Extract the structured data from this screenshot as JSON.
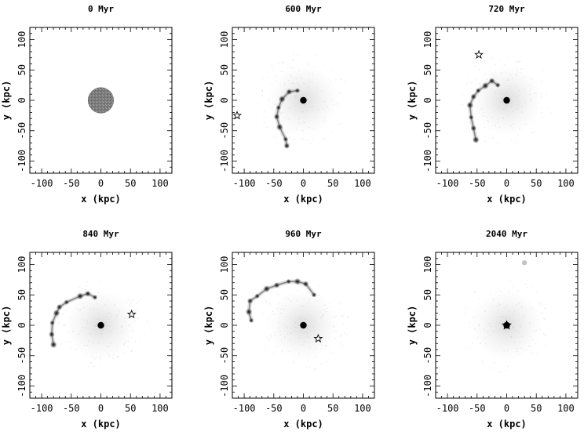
{
  "axis_labels": {
    "x": "x (kpc)",
    "y": "y (kpc)"
  },
  "ticks": {
    "x": [
      -100,
      -50,
      0,
      50,
      100
    ],
    "y": [
      100,
      50,
      0,
      -50,
      -100
    ]
  },
  "axis_range": {
    "x": [
      -120,
      120
    ],
    "y": [
      -120,
      120
    ]
  },
  "colors": {
    "ink": "#000000",
    "background": "#ffffff",
    "particles": "#8a8a8a"
  },
  "panels": [
    {
      "title": "0  Myr",
      "disk": {
        "x": 0,
        "y": 0,
        "r": 22
      },
      "core": null,
      "perturber": null,
      "blobs": []
    },
    {
      "title": "600  Myr",
      "core": {
        "x": 0,
        "y": 0
      },
      "perturber": {
        "x": -112,
        "y": -25,
        "filled": false
      },
      "blobs": [
        {
          "x": -10,
          "y": 16
        },
        {
          "x": -24,
          "y": 14
        },
        {
          "x": -36,
          "y": 2
        },
        {
          "x": -42,
          "y": -12
        },
        {
          "x": -45,
          "y": -27
        },
        {
          "x": -40,
          "y": -44
        },
        {
          "x": -30,
          "y": -64
        },
        {
          "x": -28,
          "y": -75
        }
      ]
    },
    {
      "title": "720  Myr",
      "core": {
        "x": 0,
        "y": 0
      },
      "perturber": {
        "x": -47,
        "y": 75,
        "filled": false
      },
      "blobs": [
        {
          "x": -15,
          "y": 25
        },
        {
          "x": -25,
          "y": 32
        },
        {
          "x": -36,
          "y": 24
        },
        {
          "x": -48,
          "y": 16
        },
        {
          "x": -56,
          "y": 6
        },
        {
          "x": -62,
          "y": -8
        },
        {
          "x": -60,
          "y": -28
        },
        {
          "x": -56,
          "y": -46
        },
        {
          "x": -52,
          "y": -65
        }
      ]
    },
    {
      "title": "840  Myr",
      "core": {
        "x": 0,
        "y": 0
      },
      "perturber": {
        "x": 52,
        "y": 18,
        "filled": false
      },
      "blobs": [
        {
          "x": -10,
          "y": 46
        },
        {
          "x": -22,
          "y": 52
        },
        {
          "x": -35,
          "y": 48
        },
        {
          "x": -58,
          "y": 38
        },
        {
          "x": -70,
          "y": 30
        },
        {
          "x": -75,
          "y": 20
        },
        {
          "x": -82,
          "y": 4
        },
        {
          "x": -83,
          "y": -15
        },
        {
          "x": -80,
          "y": -32
        }
      ]
    },
    {
      "title": "960  Myr",
      "core": {
        "x": 0,
        "y": 0
      },
      "perturber": {
        "x": 25,
        "y": -22,
        "filled": false
      },
      "blobs": [
        {
          "x": 18,
          "y": 50
        },
        {
          "x": 4,
          "y": 68
        },
        {
          "x": -10,
          "y": 72
        },
        {
          "x": -25,
          "y": 72
        },
        {
          "x": -45,
          "y": 66
        },
        {
          "x": -62,
          "y": 60
        },
        {
          "x": -78,
          "y": 48
        },
        {
          "x": -90,
          "y": 40
        },
        {
          "x": -92,
          "y": 22
        },
        {
          "x": -88,
          "y": 8
        }
      ]
    },
    {
      "title": "2040  Myr",
      "core": {
        "x": 0,
        "y": 0
      },
      "perturber": {
        "x": 0,
        "y": 0,
        "filled": true
      },
      "faint": [
        {
          "x": 30,
          "y": 103
        }
      ],
      "blobs": []
    }
  ]
}
